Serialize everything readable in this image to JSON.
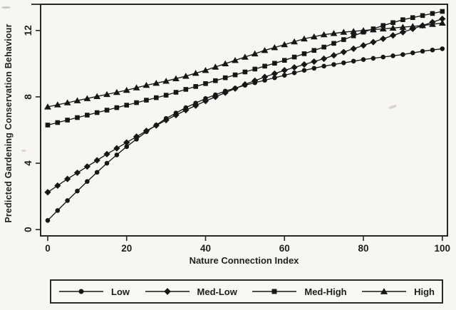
{
  "figure": {
    "ylabel": "Predicted Gardening Conservation Behaviour",
    "xlabel": "Nature Connection Index"
  },
  "chart_data": {
    "type": "line",
    "title": "",
    "xlabel": "Nature Connection Index",
    "ylabel": "Predicted Gardening Conservation Behaviour",
    "x_ticks": [
      0,
      20,
      40,
      60,
      80,
      100
    ],
    "y_ticks": [
      0,
      4,
      8,
      12
    ],
    "xlim": [
      -1.8,
      101.3
    ],
    "ylim": [
      -0.38,
      13.58
    ],
    "grid": false,
    "legend_position": "bottom",
    "line_color": "#161616",
    "marker_step": 2.5,
    "x": [
      0,
      5,
      10,
      15,
      20,
      25,
      30,
      35,
      40,
      45,
      50,
      55,
      60,
      65,
      70,
      75,
      80,
      85,
      90,
      95,
      100
    ],
    "series": [
      {
        "name": "Low",
        "marker": "circle",
        "values": [
          0.55,
          1.75,
          2.9,
          4.0,
          5.0,
          5.9,
          6.7,
          7.35,
          7.9,
          8.35,
          8.7,
          9.0,
          9.3,
          9.6,
          9.85,
          10.05,
          10.25,
          10.4,
          10.55,
          10.75,
          10.9
        ]
      },
      {
        "name": "Med-Low",
        "marker": "diamond",
        "values": [
          2.25,
          3.05,
          3.8,
          4.55,
          5.25,
          5.95,
          6.6,
          7.2,
          7.75,
          8.25,
          8.75,
          9.2,
          9.6,
          9.95,
          10.3,
          10.7,
          11.1,
          11.5,
          11.9,
          12.3,
          12.7
        ]
      },
      {
        "name": "Med-High",
        "marker": "square",
        "values": [
          6.3,
          6.6,
          6.9,
          7.2,
          7.5,
          7.8,
          8.1,
          8.45,
          8.8,
          9.15,
          9.5,
          9.85,
          10.2,
          10.6,
          11.0,
          11.45,
          11.9,
          12.3,
          12.65,
          12.9,
          13.15
        ]
      },
      {
        "name": "High",
        "marker": "triangle",
        "values": [
          7.4,
          7.65,
          7.9,
          8.15,
          8.4,
          8.7,
          8.95,
          9.25,
          9.6,
          10.0,
          10.4,
          10.8,
          11.15,
          11.5,
          11.75,
          11.9,
          12.0,
          12.1,
          12.2,
          12.3,
          12.45
        ]
      }
    ]
  }
}
